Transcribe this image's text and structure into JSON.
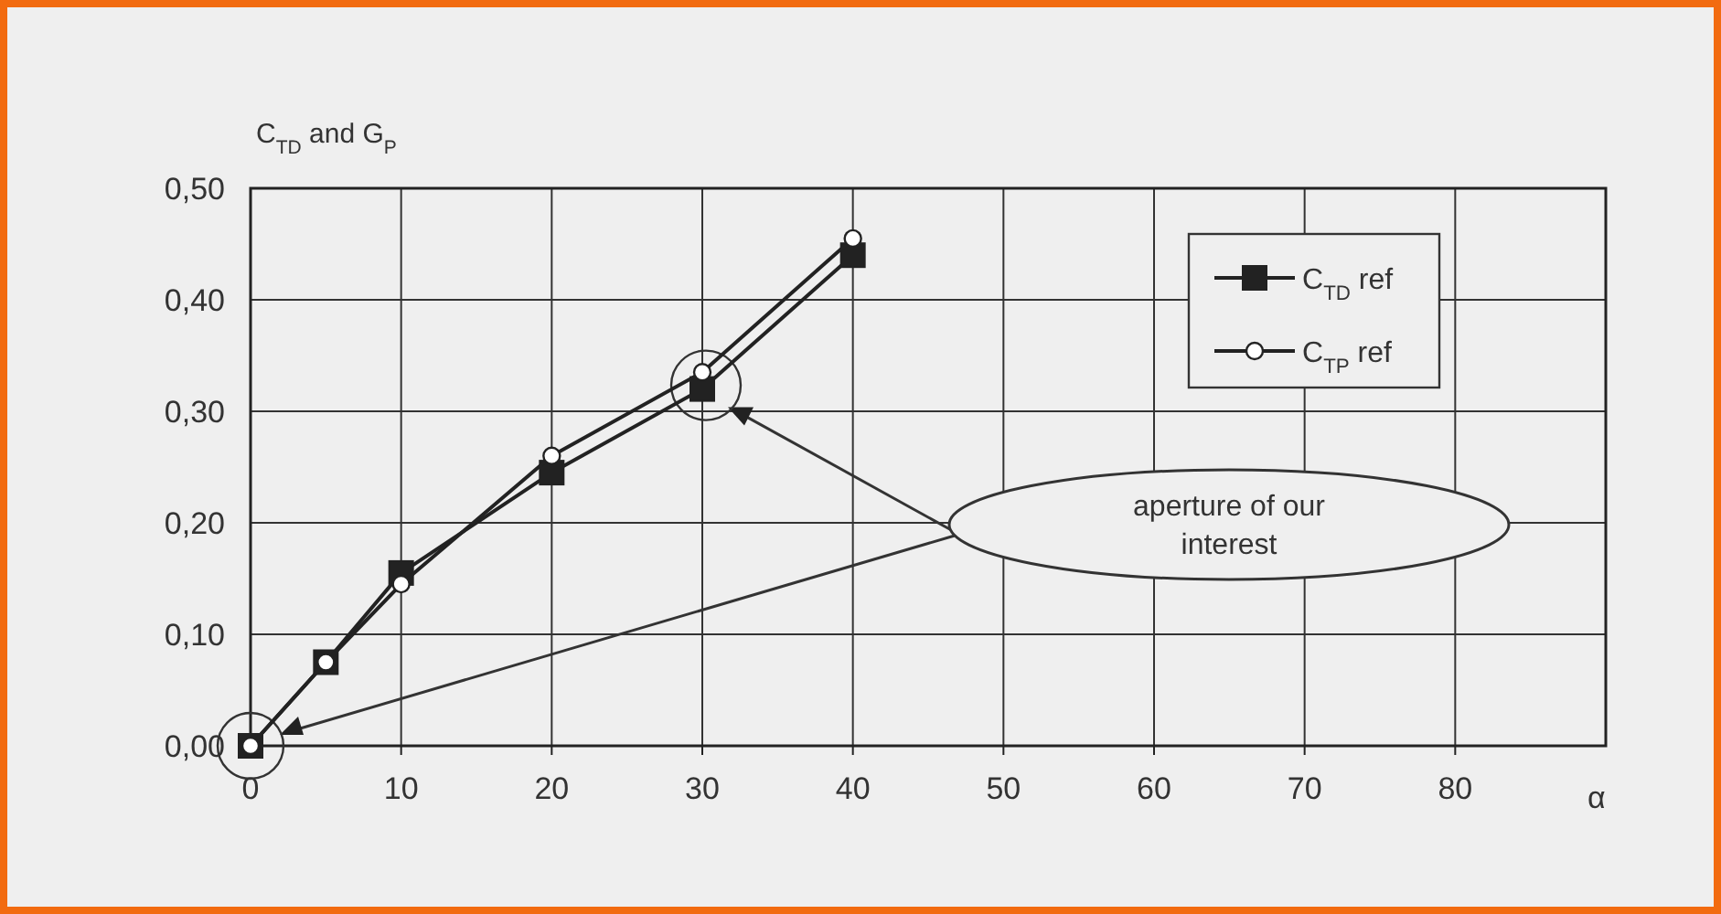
{
  "chart_data": {
    "type": "line",
    "ylabel": "C$_{TD}$ and G$_{P}$",
    "xlabel": "α",
    "x": [
      0,
      5,
      10,
      20,
      30,
      40
    ],
    "series": [
      {
        "name": "C$_{TD}$ ref",
        "color": "#222222",
        "marker": "square",
        "values": [
          0,
          0.075,
          0.155,
          0.245,
          0.32,
          0.44
        ]
      },
      {
        "name": "C$_{TP}$ ref",
        "color": "#222222",
        "marker": "circle",
        "values": [
          0,
          0.075,
          0.145,
          0.26,
          0.335,
          0.455
        ]
      }
    ],
    "xlim": [
      0,
      90
    ],
    "xticks": [
      0,
      10,
      20,
      30,
      40,
      50,
      60,
      70,
      80
    ],
    "ylim": [
      0,
      0.5
    ],
    "yticks": [
      {
        "value": 0,
        "label": "0,00"
      },
      {
        "value": 0.1,
        "label": "0,10"
      },
      {
        "value": 0.2,
        "label": "0,20"
      },
      {
        "value": 0.3,
        "label": "0,30"
      },
      {
        "value": 0.4,
        "label": "0,40"
      },
      {
        "value": 0.5,
        "label": "0,50"
      }
    ],
    "grid": true,
    "legend": "top right",
    "line_style": "solid",
    "annotations": [
      "aperture of our interest"
    ]
  }
}
